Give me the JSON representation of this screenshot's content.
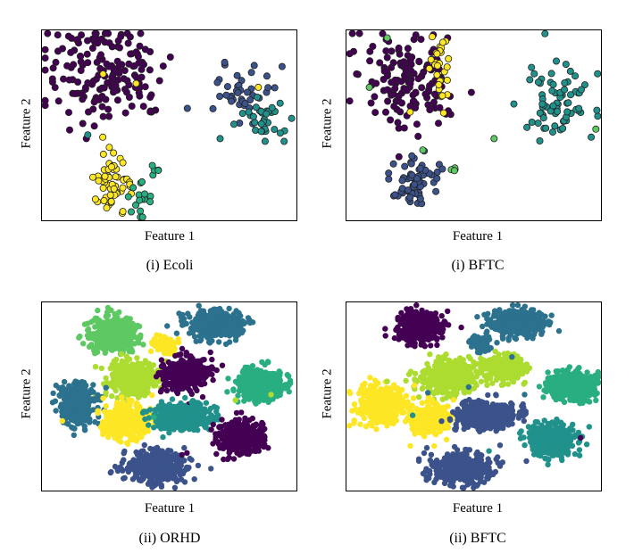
{
  "colors": {
    "purple": "#440154",
    "indigo": "#3b528b",
    "steel": "#2c728e",
    "teal": "#21918c",
    "green": "#28ae80",
    "lightgreen": "#5ec962",
    "lime": "#addc30",
    "yellow": "#fde725"
  },
  "chart_data": [
    {
      "type": "scatter",
      "title": "",
      "xlabel": "Feature 1",
      "ylabel": "Feature 2",
      "caption": "(i) Ecoli",
      "clusters": [
        {
          "color": "purple",
          "cx": 0.25,
          "cy": 0.22,
          "sx": 0.12,
          "sy": 0.14,
          "n": 170
        },
        {
          "color": "indigo",
          "cx": 0.78,
          "cy": 0.33,
          "sx": 0.06,
          "sy": 0.07,
          "n": 40
        },
        {
          "color": "teal",
          "cx": 0.87,
          "cy": 0.48,
          "sx": 0.04,
          "sy": 0.06,
          "n": 35
        },
        {
          "color": "yellow",
          "cx": 0.28,
          "cy": 0.8,
          "sx": 0.04,
          "sy": 0.07,
          "n": 55
        },
        {
          "color": "green",
          "cx": 0.38,
          "cy": 0.89,
          "sx": 0.025,
          "sy": 0.05,
          "n": 18
        },
        {
          "color": "green",
          "cx": 0.45,
          "cy": 0.73,
          "sx": 0.012,
          "sy": 0.01,
          "n": 4
        }
      ],
      "stray": [
        {
          "color": "yellow",
          "x": 0.24,
          "y": 0.23
        },
        {
          "color": "yellow",
          "x": 0.37,
          "y": 0.28
        },
        {
          "color": "yellow",
          "x": 0.85,
          "y": 0.3
        },
        {
          "color": "teal",
          "x": 0.7,
          "y": 0.57
        },
        {
          "color": "teal",
          "x": 0.18,
          "y": 0.55
        }
      ]
    },
    {
      "type": "scatter",
      "title": "",
      "xlabel": "Feature 1",
      "ylabel": "Feature 2",
      "caption": "(i) BFTC",
      "clusters": [
        {
          "color": "purple",
          "cx": 0.25,
          "cy": 0.24,
          "sx": 0.1,
          "sy": 0.13,
          "n": 150
        },
        {
          "color": "yellow",
          "cx": 0.37,
          "cy": 0.22,
          "sx": 0.02,
          "sy": 0.09,
          "n": 30
        },
        {
          "color": "teal",
          "cx": 0.82,
          "cy": 0.38,
          "sx": 0.07,
          "sy": 0.09,
          "n": 75
        },
        {
          "color": "indigo",
          "cx": 0.27,
          "cy": 0.78,
          "sx": 0.05,
          "sy": 0.08,
          "n": 65
        },
        {
          "color": "lightgreen",
          "cx": 0.42,
          "cy": 0.73,
          "sx": 0.012,
          "sy": 0.01,
          "n": 4
        }
      ],
      "stray": [
        {
          "color": "lightgreen",
          "x": 0.16,
          "y": 0.04
        },
        {
          "color": "lightgreen",
          "x": 0.09,
          "y": 0.3
        },
        {
          "color": "lightgreen",
          "x": 0.58,
          "y": 0.57
        },
        {
          "color": "lightgreen",
          "x": 0.98,
          "y": 0.52
        },
        {
          "color": "lightgreen",
          "x": 0.3,
          "y": 0.63
        },
        {
          "color": "yellow",
          "x": 0.25,
          "y": 0.43
        }
      ]
    },
    {
      "type": "scatter",
      "title": "",
      "xlabel": "Feature 1",
      "ylabel": "Feature 2",
      "caption": "(ii) ORHD",
      "clusters": [
        {
          "color": "lightgreen",
          "cx": 0.28,
          "cy": 0.17,
          "sx": 0.045,
          "sy": 0.045,
          "n": 420
        },
        {
          "color": "steel",
          "cx": 0.68,
          "cy": 0.12,
          "sx": 0.05,
          "sy": 0.035,
          "n": 420
        },
        {
          "color": "yellow",
          "cx": 0.48,
          "cy": 0.22,
          "sx": 0.02,
          "sy": 0.025,
          "n": 90
        },
        {
          "color": "lime",
          "cx": 0.36,
          "cy": 0.41,
          "sx": 0.045,
          "sy": 0.045,
          "n": 420
        },
        {
          "color": "purple",
          "cx": 0.56,
          "cy": 0.38,
          "sx": 0.045,
          "sy": 0.045,
          "n": 380
        },
        {
          "color": "green",
          "cx": 0.86,
          "cy": 0.44,
          "sx": 0.045,
          "sy": 0.04,
          "n": 420
        },
        {
          "color": "steel",
          "cx": 0.14,
          "cy": 0.54,
          "sx": 0.035,
          "sy": 0.05,
          "n": 400
        },
        {
          "color": "yellow",
          "cx": 0.33,
          "cy": 0.63,
          "sx": 0.04,
          "sy": 0.045,
          "n": 420
        },
        {
          "color": "teal",
          "cx": 0.55,
          "cy": 0.61,
          "sx": 0.06,
          "sy": 0.035,
          "n": 420
        },
        {
          "color": "purple",
          "cx": 0.78,
          "cy": 0.72,
          "sx": 0.045,
          "sy": 0.04,
          "n": 420
        },
        {
          "color": "indigo",
          "cx": 0.45,
          "cy": 0.87,
          "sx": 0.06,
          "sy": 0.04,
          "n": 420
        }
      ],
      "stray": [
        {
          "color": "yellow",
          "x": 0.08,
          "y": 0.63
        },
        {
          "color": "purple",
          "x": 0.57,
          "y": 0.8
        },
        {
          "color": "purple",
          "x": 0.55,
          "y": 0.81
        },
        {
          "color": "teal",
          "x": 0.4,
          "y": 0.58
        },
        {
          "color": "green",
          "x": 0.44,
          "y": 0.61
        },
        {
          "color": "lime",
          "x": 0.76,
          "y": 0.52
        },
        {
          "color": "lime",
          "x": 0.9,
          "y": 0.49
        }
      ]
    },
    {
      "type": "scatter",
      "title": "",
      "xlabel": "Feature 1",
      "ylabel": "Feature 2",
      "caption": "(ii) BFTC",
      "clusters": [
        {
          "color": "purple",
          "cx": 0.29,
          "cy": 0.13,
          "sx": 0.045,
          "sy": 0.04,
          "n": 380
        },
        {
          "color": "steel",
          "cx": 0.67,
          "cy": 0.11,
          "sx": 0.05,
          "sy": 0.035,
          "n": 420
        },
        {
          "color": "steel",
          "cx": 0.52,
          "cy": 0.22,
          "sx": 0.02,
          "sy": 0.02,
          "n": 60
        },
        {
          "color": "lime",
          "cx": 0.4,
          "cy": 0.4,
          "sx": 0.055,
          "sy": 0.045,
          "n": 420
        },
        {
          "color": "lime",
          "cx": 0.62,
          "cy": 0.35,
          "sx": 0.04,
          "sy": 0.035,
          "n": 240
        },
        {
          "color": "green",
          "cx": 0.89,
          "cy": 0.44,
          "sx": 0.045,
          "sy": 0.04,
          "n": 420
        },
        {
          "color": "yellow",
          "cx": 0.14,
          "cy": 0.55,
          "sx": 0.045,
          "sy": 0.05,
          "n": 420
        },
        {
          "color": "yellow",
          "cx": 0.33,
          "cy": 0.62,
          "sx": 0.04,
          "sy": 0.04,
          "n": 300
        },
        {
          "color": "indigo",
          "cx": 0.55,
          "cy": 0.6,
          "sx": 0.06,
          "sy": 0.035,
          "n": 420
        },
        {
          "color": "teal",
          "cx": 0.81,
          "cy": 0.73,
          "sx": 0.045,
          "sy": 0.04,
          "n": 420
        },
        {
          "color": "indigo",
          "cx": 0.45,
          "cy": 0.88,
          "sx": 0.06,
          "sy": 0.04,
          "n": 420
        }
      ],
      "stray": [
        {
          "color": "steel",
          "x": 0.32,
          "y": 0.48
        },
        {
          "color": "steel",
          "x": 0.48,
          "y": 0.45
        },
        {
          "color": "steel",
          "x": 0.65,
          "y": 0.29
        },
        {
          "color": "purple",
          "x": 0.92,
          "y": 0.72
        },
        {
          "color": "teal",
          "x": 0.56,
          "y": 0.79
        },
        {
          "color": "teal",
          "x": 0.26,
          "y": 0.6
        },
        {
          "color": "steel",
          "x": 0.7,
          "y": 0.49
        },
        {
          "color": "lime",
          "x": 0.16,
          "y": 0.42
        },
        {
          "color": "purple",
          "x": 0.24,
          "y": 0.14
        }
      ]
    }
  ]
}
